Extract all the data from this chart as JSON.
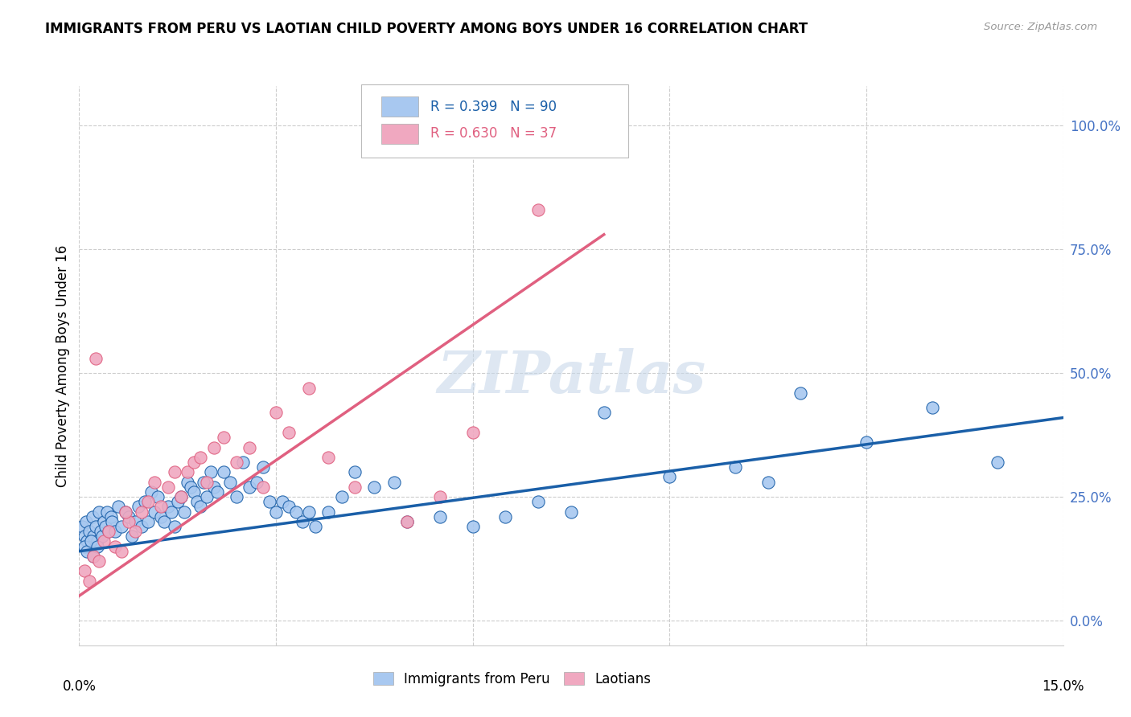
{
  "title": "IMMIGRANTS FROM PERU VS LAOTIAN CHILD POVERTY AMONG BOYS UNDER 16 CORRELATION CHART",
  "source": "Source: ZipAtlas.com",
  "ylabel": "Child Poverty Among Boys Under 16",
  "ytick_values": [
    0,
    25,
    50,
    75,
    100
  ],
  "xlim": [
    0,
    15
  ],
  "ylim": [
    -5,
    108
  ],
  "legend_labels": [
    "Immigrants from Peru",
    "Laotians"
  ],
  "R_peru": 0.399,
  "N_peru": 90,
  "R_laotian": 0.63,
  "N_laotian": 37,
  "color_peru": "#a8c8f0",
  "color_laotian": "#f0a8c0",
  "line_color_peru": "#1a5fa8",
  "line_color_laotian": "#e06080",
  "watermark": "ZIPatlas",
  "watermark_color": "#c8d8ea",
  "peru_x": [
    0.05,
    0.08,
    0.1,
    0.12,
    0.15,
    0.18,
    0.2,
    0.22,
    0.25,
    0.28,
    0.3,
    0.32,
    0.35,
    0.38,
    0.4,
    0.42,
    0.45,
    0.48,
    0.5,
    0.55,
    0.6,
    0.65,
    0.7,
    0.75,
    0.8,
    0.85,
    0.9,
    0.95,
    1.0,
    1.05,
    1.1,
    1.15,
    1.2,
    1.25,
    1.3,
    1.35,
    1.4,
    1.45,
    1.5,
    1.55,
    1.6,
    1.65,
    1.7,
    1.75,
    1.8,
    1.85,
    1.9,
    1.95,
    2.0,
    2.05,
    2.1,
    2.2,
    2.3,
    2.4,
    2.5,
    2.6,
    2.7,
    2.8,
    2.9,
    3.0,
    3.1,
    3.2,
    3.3,
    3.4,
    3.5,
    3.6,
    3.8,
    4.0,
    4.2,
    4.5,
    4.8,
    5.0,
    5.5,
    6.0,
    6.5,
    7.0,
    7.5,
    8.0,
    9.0,
    10.0,
    10.5,
    11.0,
    12.0,
    13.0,
    14.0,
    0.08,
    0.12,
    0.18,
    0.22,
    0.28
  ],
  "peru_y": [
    19,
    17,
    20,
    16,
    18,
    15,
    21,
    17,
    19,
    16,
    22,
    18,
    17,
    20,
    19,
    22,
    18,
    21,
    20,
    18,
    23,
    19,
    22,
    21,
    17,
    20,
    23,
    19,
    24,
    20,
    26,
    22,
    25,
    21,
    20,
    23,
    22,
    19,
    24,
    25,
    22,
    28,
    27,
    26,
    24,
    23,
    28,
    25,
    30,
    27,
    26,
    30,
    28,
    25,
    32,
    27,
    28,
    31,
    24,
    22,
    24,
    23,
    22,
    20,
    22,
    19,
    22,
    25,
    30,
    27,
    28,
    20,
    21,
    19,
    21,
    24,
    22,
    42,
    29,
    31,
    28,
    46,
    36,
    43,
    32,
    15,
    14,
    16,
    13,
    15
  ],
  "laotian_x": [
    0.08,
    0.15,
    0.22,
    0.3,
    0.38,
    0.45,
    0.55,
    0.65,
    0.75,
    0.85,
    0.95,
    1.05,
    1.15,
    1.25,
    1.35,
    1.45,
    1.55,
    1.65,
    1.75,
    1.85,
    1.95,
    2.05,
    2.2,
    2.4,
    2.6,
    2.8,
    3.0,
    3.2,
    3.5,
    3.8,
    4.2,
    5.0,
    5.5,
    6.0,
    7.0,
    0.25,
    0.7
  ],
  "laotian_y": [
    10,
    8,
    13,
    12,
    16,
    18,
    15,
    14,
    20,
    18,
    22,
    24,
    28,
    23,
    27,
    30,
    25,
    30,
    32,
    33,
    28,
    35,
    37,
    32,
    35,
    27,
    42,
    38,
    47,
    33,
    27,
    20,
    25,
    38,
    83,
    53,
    22
  ],
  "peru_trendline_x": [
    0,
    15
  ],
  "peru_trendline_y": [
    14,
    41
  ],
  "laotian_trendline_x": [
    0,
    8.0
  ],
  "laotian_trendline_y": [
    5,
    78
  ]
}
